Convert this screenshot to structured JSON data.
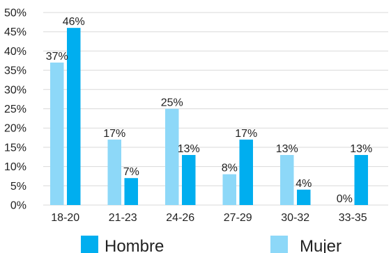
{
  "chart_data": {
    "type": "bar",
    "categories": [
      "18-20",
      "21-23",
      "24-26",
      "27-29",
      "30-32",
      "33-35"
    ],
    "series": [
      {
        "name": "Mujer",
        "color": "#8dd8f8",
        "values": [
          37,
          17,
          25,
          8,
          13,
          0
        ],
        "labels": [
          "37%",
          "17%",
          "25%",
          "8%",
          "13%",
          "0%"
        ]
      },
      {
        "name": "Hombre",
        "color": "#00aeef",
        "values": [
          46,
          7,
          13,
          17,
          4,
          13
        ],
        "labels": [
          "46%",
          "7%",
          "13%",
          "17%",
          "4%",
          "13%"
        ]
      }
    ],
    "yticks": [
      "0%",
      "5%",
      "10%",
      "15%",
      "20%",
      "25%",
      "30%",
      "35%",
      "40%",
      "45%",
      "50%"
    ],
    "ylim": [
      0,
      50
    ],
    "grid": true,
    "gridColor": "#d9d9d9",
    "legend": {
      "placement": "bottom",
      "entries": [
        "Hombre",
        "Mujer"
      ]
    },
    "title": "",
    "xlabel": "",
    "ylabel": ""
  }
}
